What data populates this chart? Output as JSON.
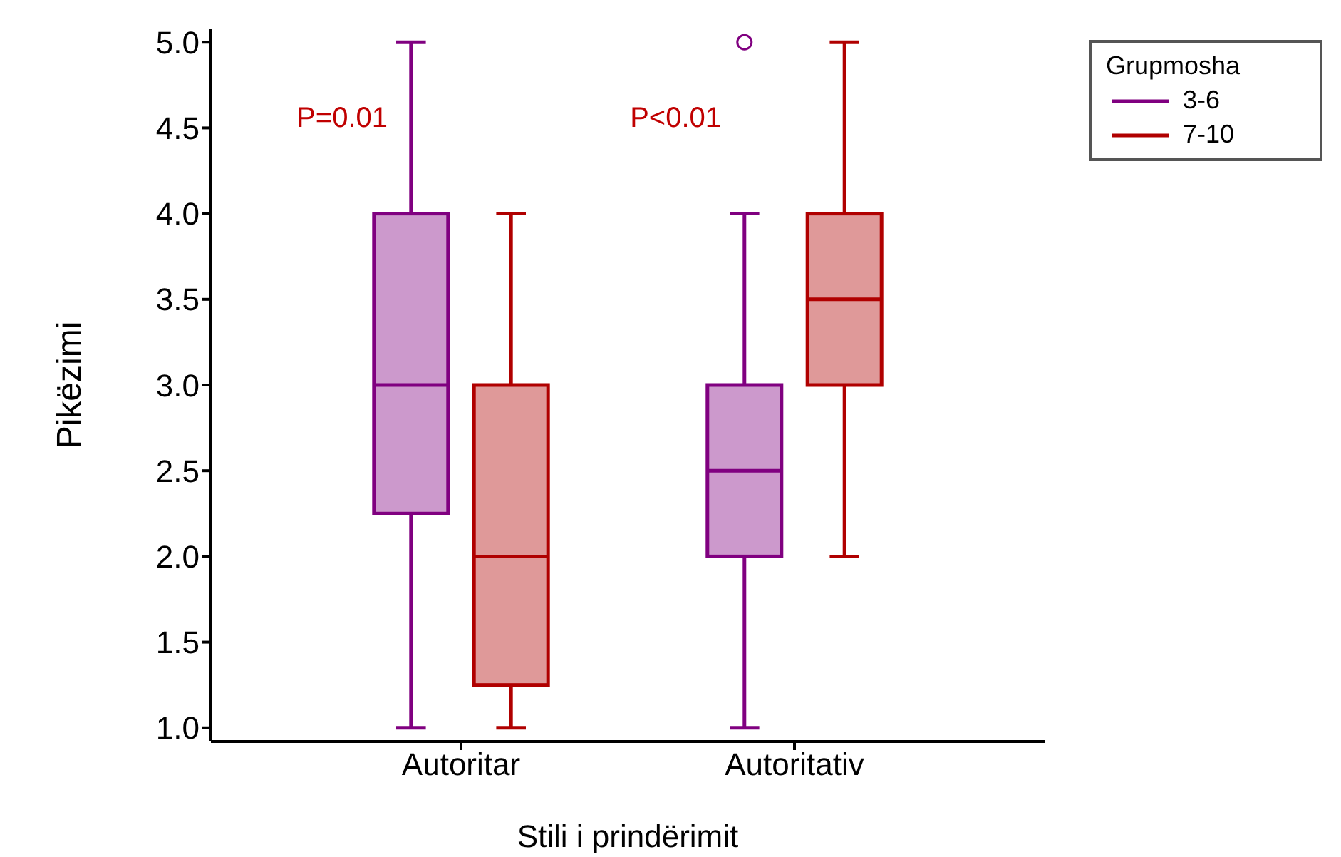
{
  "chart_data": {
    "type": "box",
    "xlabel": "Stili i prindërimit",
    "ylabel": "Pikëzimi",
    "legend_title": "Grupmosha",
    "categories": [
      "Autoritar",
      "Autoritativ"
    ],
    "series": [
      {
        "name": "3-6",
        "color": "#800080",
        "boxes": [
          {
            "low": 1,
            "q1": 2.25,
            "median": 3,
            "q3": 4,
            "high": 5
          },
          {
            "low": 1,
            "q1": 2,
            "median": 2.5,
            "q3": 3,
            "high": 4,
            "outliers": [
              5
            ]
          }
        ]
      },
      {
        "name": "7-10",
        "color": "#b00000",
        "boxes": [
          {
            "low": 1,
            "q1": 1.25,
            "median": 2,
            "q3": 3,
            "high": 4
          },
          {
            "low": 2,
            "q1": 3,
            "median": 3.5,
            "q3": 4,
            "high": 5
          }
        ]
      }
    ],
    "ylim": [
      0.92,
      5.08
    ],
    "yticks": [
      {
        "value": 1,
        "label": "1.0"
      },
      {
        "value": 1.5,
        "label": "1.5"
      },
      {
        "value": 2,
        "label": "2.0"
      },
      {
        "value": 2.5,
        "label": "2.5"
      },
      {
        "value": 3,
        "label": "3.0"
      },
      {
        "value": 3.5,
        "label": "3.5"
      },
      {
        "value": 4,
        "label": "4.0"
      },
      {
        "value": 4.5,
        "label": "4.5"
      },
      {
        "value": 5,
        "label": "5.0"
      }
    ],
    "annotations": [
      "P=0.01",
      "P<0.01"
    ],
    "legend": "top right",
    "grid": false
  }
}
